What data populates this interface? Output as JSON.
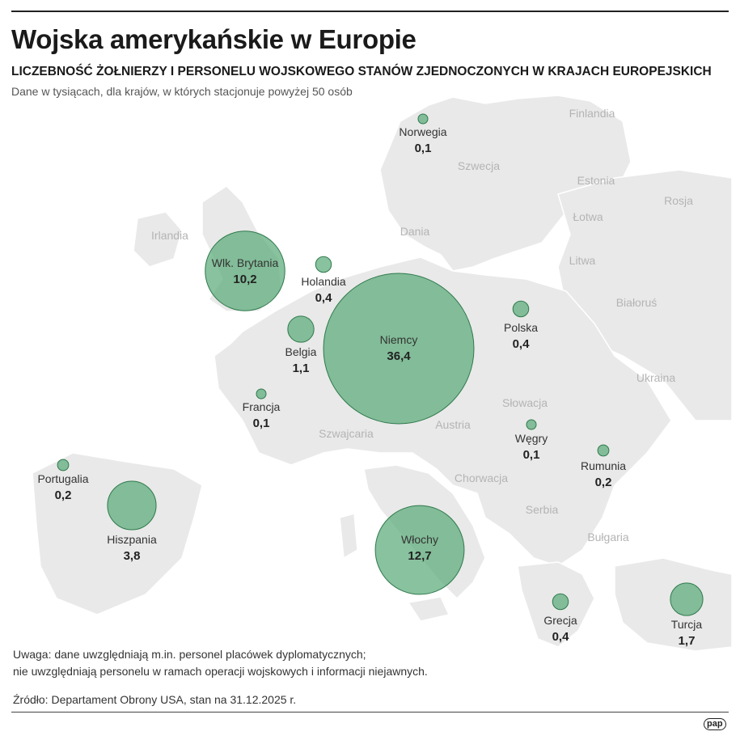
{
  "header": {
    "title": "Wojska amerykańskie w Europie",
    "subtitle": "LICZEBNOŚĆ ŻOŁNIERZY I PERSONELU WOJSKOWEGO STANÓW ZJEDNOCZONYCH W KRAJACH EUROPEJSKICH",
    "description": "Dane w tysiącach, dla krajów, w których stacjonuje powyżej 50 osób"
  },
  "map_labels": [
    "Finlandia",
    "Szwecja",
    "Estonia",
    "Rosja",
    "Łotwa",
    "Litwa",
    "Irlandia",
    "Dania",
    "Białoruś",
    "Ukraina",
    "Słowacja",
    "Austria",
    "Szwajcaria",
    "Chorwacja",
    "Serbia",
    "Bułgaria"
  ],
  "deployments": [
    {
      "country": "Norwegia",
      "value": 0.1,
      "label": "0,1"
    },
    {
      "country": "Wlk. Brytania",
      "value": 10.2,
      "label": "10,2"
    },
    {
      "country": "Holandia",
      "value": 0.4,
      "label": "0,4"
    },
    {
      "country": "Belgia",
      "value": 1.1,
      "label": "1,1"
    },
    {
      "country": "Niemcy",
      "value": 36.4,
      "label": "36,4"
    },
    {
      "country": "Polska",
      "value": 0.4,
      "label": "0,4"
    },
    {
      "country": "Francja",
      "value": 0.1,
      "label": "0,1"
    },
    {
      "country": "Węgry",
      "value": 0.1,
      "label": "0,1"
    },
    {
      "country": "Rumunia",
      "value": 0.2,
      "label": "0,2"
    },
    {
      "country": "Portugalia",
      "value": 0.2,
      "label": "0,2"
    },
    {
      "country": "Hiszpania",
      "value": 3.8,
      "label": "3,8"
    },
    {
      "country": "Włochy",
      "value": 12.7,
      "label": "12,7"
    },
    {
      "country": "Grecja",
      "value": 0.4,
      "label": "0,4"
    },
    {
      "country": "Turcja",
      "value": 1.7,
      "label": "1,7"
    }
  ],
  "colors": {
    "bubble_fill": "#5aaa78",
    "bubble_stroke": "#2f7a4c",
    "land": "#e9e9e9"
  },
  "footer": {
    "note_line1": "Uwaga: dane uwzględniają m.in. personel placówek dyplomatycznych;",
    "note_line2": "nie uwzględniają personelu w ramach operacji wojskowych i informacji niejawnych.",
    "source": "Źródło: Departament Obrony USA, stan na 31.12.2025 r.",
    "logo": "pap"
  }
}
